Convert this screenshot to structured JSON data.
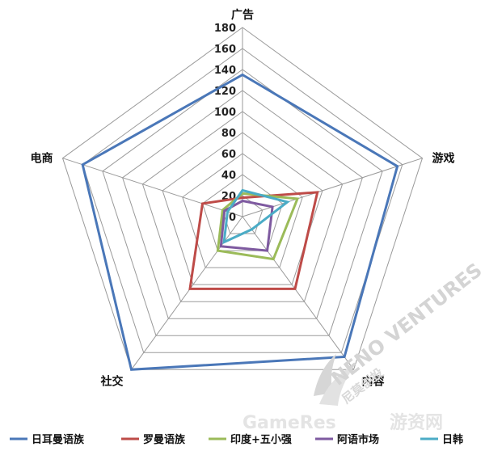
{
  "chart_data": {
    "type": "radar",
    "title": "",
    "axes": [
      "广告",
      "游戏",
      "内容",
      "社交",
      "电商"
    ],
    "ticks": [
      0,
      20,
      40,
      60,
      80,
      100,
      120,
      140,
      160,
      180
    ],
    "rmin": 0,
    "rmax": 180,
    "grid": true,
    "legend_position": "bottom",
    "series": [
      {
        "name": "日耳曼语族",
        "values": [
          135,
          155,
          165,
          180,
          160
        ],
        "color": "#4a77b8"
      },
      {
        "name": "罗曼语族",
        "values": [
          18,
          75,
          85,
          85,
          40
        ],
        "color": "#be4b48"
      },
      {
        "name": "印度+五小强",
        "values": [
          22,
          55,
          50,
          40,
          20
        ],
        "color": "#9bbb59"
      },
      {
        "name": "阿语市场",
        "values": [
          15,
          30,
          40,
          35,
          18
        ],
        "color": "#7e5aa0"
      },
      {
        "name": "日韩",
        "values": [
          25,
          45,
          15,
          30,
          15
        ],
        "color": "#4bacc6"
      }
    ]
  },
  "watermark": {
    "logo_text": "NENO VENTURES",
    "logo_cn": "尼莫创投",
    "site_text": "GameRes",
    "site_cn": "游资网",
    "colors": {
      "light": "#dcdcdc",
      "mid": "#c8c8c8"
    }
  }
}
